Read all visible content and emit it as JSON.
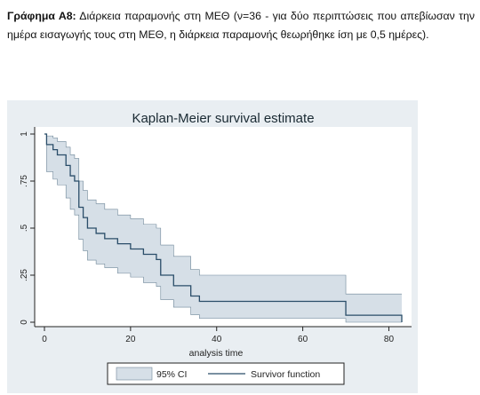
{
  "caption": {
    "label": "Γράφημα Α8:",
    "text": " Διάρκεια παραμονής στη ΜΕΘ (ν=36 - για δύο περιπτώσεις που απεβίωσαν την ημέρα εισαγωγής τους στη ΜΕΘ, η διάρκεια παραμονής θεωρήθηκε ίση με 0,5 ημέρες)."
  },
  "chart_data": {
    "type": "line",
    "title": "Kaplan-Meier survival estimate",
    "xlabel": "analysis time",
    "ylabel": "",
    "xlim": [
      0,
      83
    ],
    "ylim": [
      0,
      1
    ],
    "x_ticks": [
      0,
      20,
      40,
      60,
      80
    ],
    "x_tick_labels": [
      "0",
      "20",
      "40",
      "60",
      "80"
    ],
    "y_ticks": [
      0,
      0.25,
      0.5,
      0.75,
      1
    ],
    "y_tick_labels": [
      "0",
      ".25",
      ".5",
      ".75",
      "1"
    ],
    "grid": false,
    "legend": {
      "position": "bottom",
      "items": [
        "95% CI",
        "Survivor function"
      ]
    },
    "colors": {
      "line": "#2a4d69",
      "ci_fill": "#d6dfe7",
      "ci_edge": "#6f8799",
      "background": "#e9eef2"
    },
    "series": [
      {
        "name": "Survivor function",
        "x": [
          0,
          0.5,
          2,
          3,
          5,
          6,
          7,
          8,
          9,
          10,
          12,
          14,
          17,
          20,
          23,
          26,
          27,
          30,
          34,
          36,
          55,
          70,
          83
        ],
        "y": [
          1,
          0.944,
          0.917,
          0.889,
          0.833,
          0.778,
          0.75,
          0.611,
          0.556,
          0.5,
          0.472,
          0.444,
          0.417,
          0.389,
          0.361,
          0.333,
          0.25,
          0.194,
          0.139,
          0.111,
          0.111,
          0.037,
          0
        ]
      }
    ],
    "ci": {
      "name": "95% CI",
      "x": [
        0,
        0.5,
        2,
        3,
        5,
        6,
        7,
        8,
        9,
        10,
        12,
        14,
        17,
        20,
        23,
        26,
        27,
        30,
        34,
        36,
        55,
        70,
        83
      ],
      "lower": [
        1,
        0.8,
        0.76,
        0.73,
        0.66,
        0.6,
        0.57,
        0.44,
        0.38,
        0.33,
        0.31,
        0.29,
        0.26,
        0.24,
        0.21,
        0.19,
        0.12,
        0.08,
        0.04,
        0.02,
        0.02,
        0.0,
        0.0
      ],
      "upper": [
        1,
        0.99,
        0.98,
        0.96,
        0.93,
        0.89,
        0.87,
        0.75,
        0.7,
        0.65,
        0.63,
        0.6,
        0.57,
        0.55,
        0.52,
        0.5,
        0.41,
        0.35,
        0.28,
        0.25,
        0.25,
        0.15,
        0.15
      ]
    }
  }
}
